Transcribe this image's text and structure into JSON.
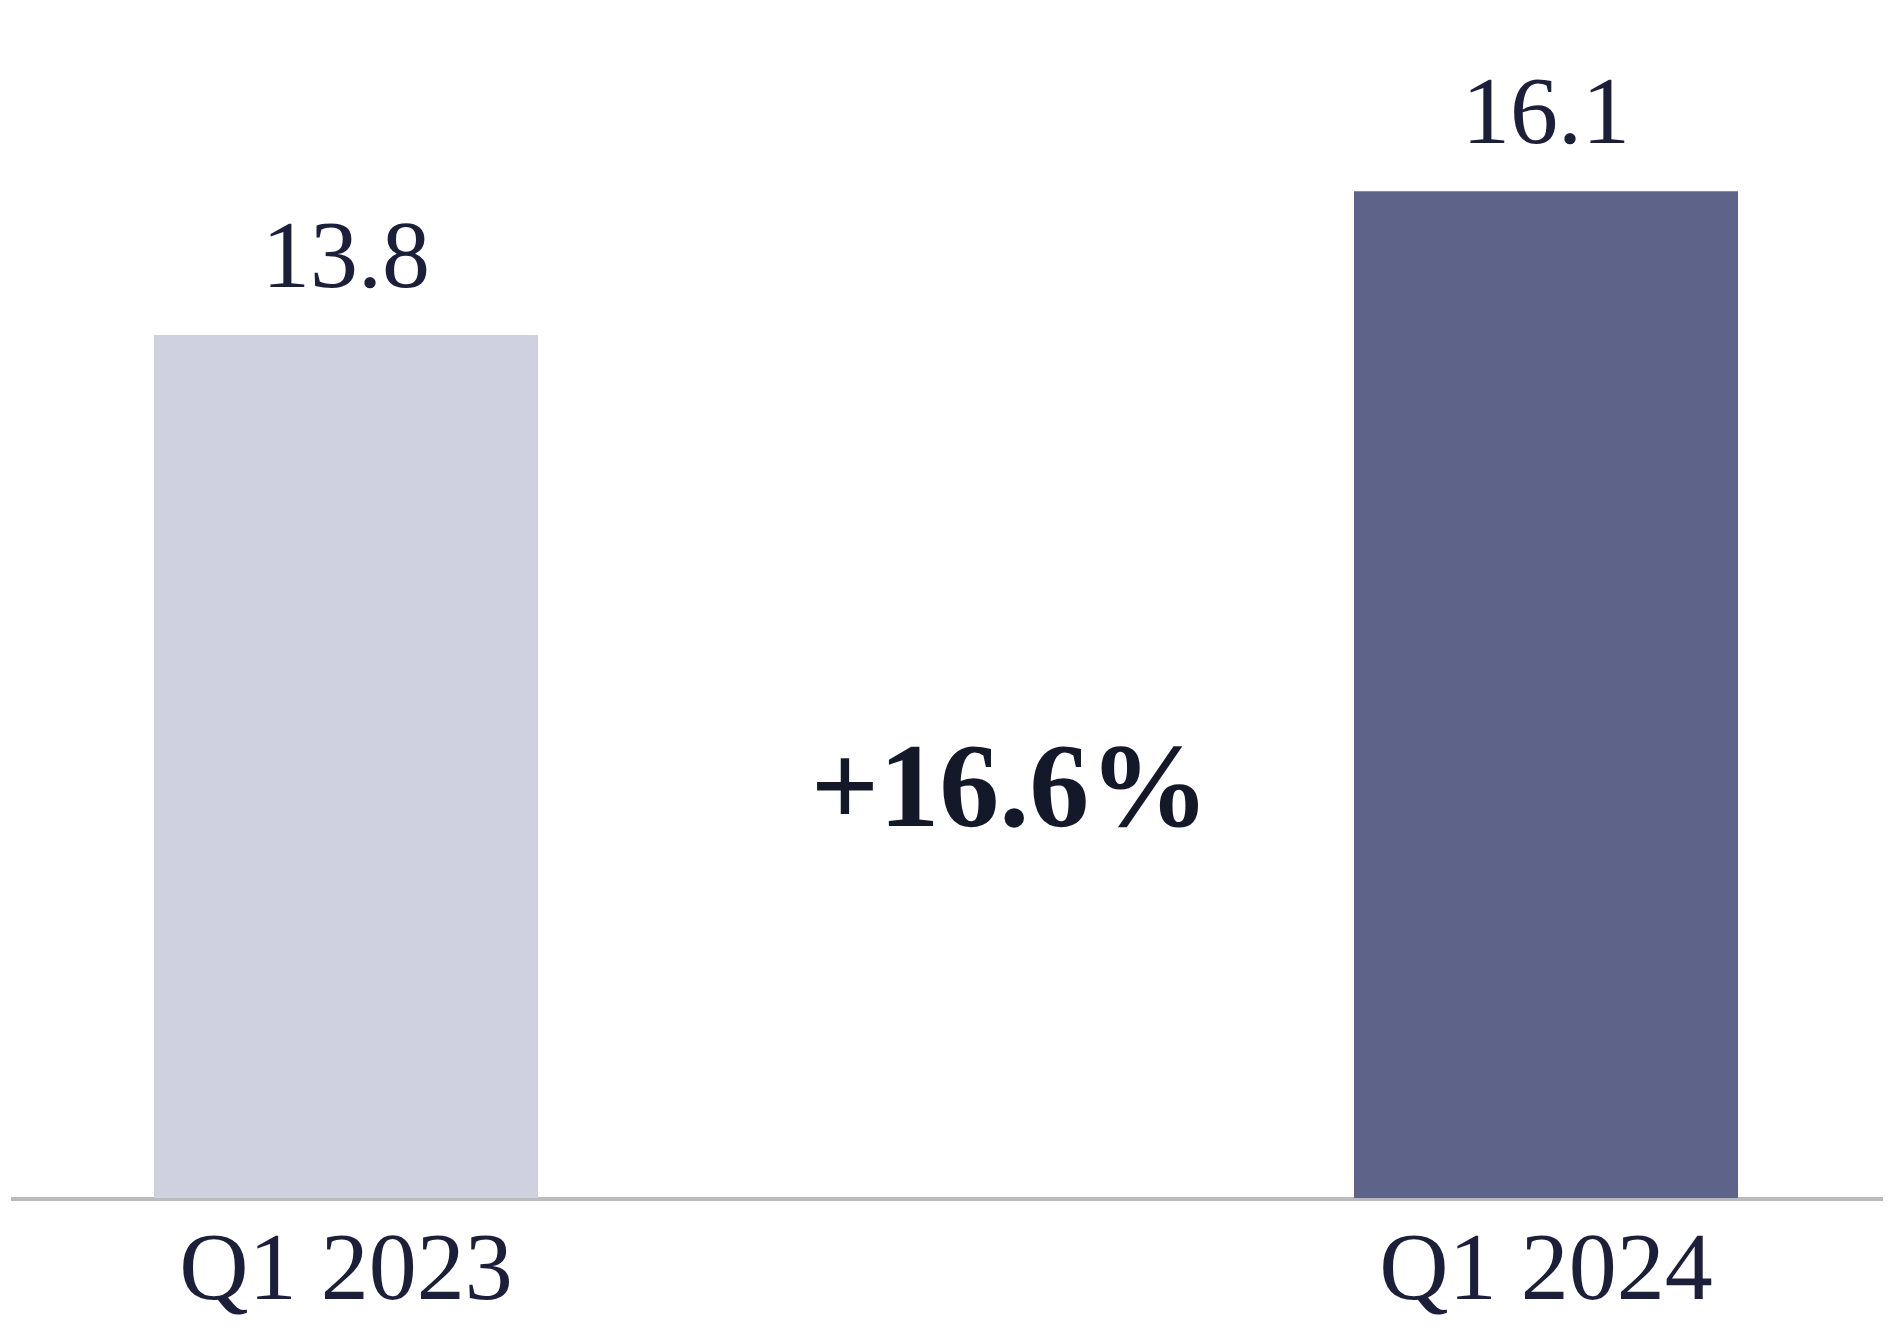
{
  "chart_data": {
    "type": "bar",
    "categories": [
      "Q1 2023",
      "Q1 2024"
    ],
    "values": [
      13.8,
      16.1
    ],
    "colors": [
      "#cfd1e0",
      "#5d6389"
    ],
    "data_labels": true,
    "grid": false,
    "tick_labels": "x",
    "annotations": [
      "+16.6%"
    ]
  }
}
